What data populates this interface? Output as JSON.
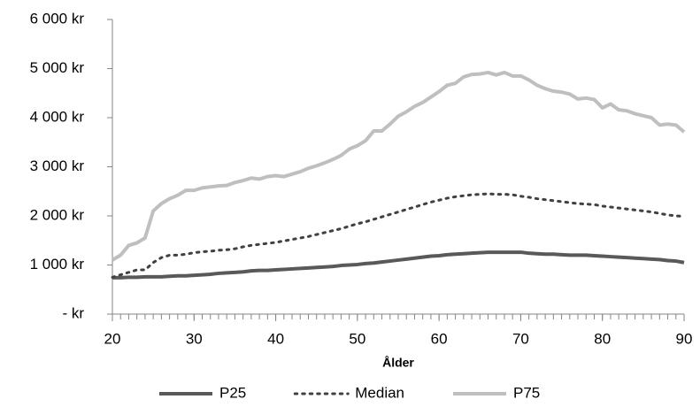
{
  "chart_data": {
    "type": "line",
    "x_label": "Ålder",
    "x": [
      20,
      21,
      22,
      23,
      24,
      25,
      26,
      27,
      28,
      29,
      30,
      31,
      32,
      33,
      34,
      35,
      36,
      37,
      38,
      39,
      40,
      41,
      42,
      43,
      44,
      45,
      46,
      47,
      48,
      49,
      50,
      51,
      52,
      53,
      54,
      55,
      56,
      57,
      58,
      59,
      60,
      61,
      62,
      63,
      64,
      65,
      66,
      67,
      68,
      69,
      70,
      71,
      72,
      73,
      74,
      75,
      76,
      77,
      78,
      79,
      80,
      81,
      82,
      83,
      84,
      85,
      86,
      87,
      88,
      89,
      90
    ],
    "xlim": [
      20,
      90
    ],
    "xticks": [
      20,
      30,
      40,
      50,
      60,
      70,
      80,
      90
    ],
    "ylim": [
      0,
      6000
    ],
    "yticks": [
      {
        "value": 0,
        "label": "-   kr"
      },
      {
        "value": 1000,
        "label": "1 000 kr"
      },
      {
        "value": 2000,
        "label": "2 000 kr"
      },
      {
        "value": 3000,
        "label": "3 000 kr"
      },
      {
        "value": 4000,
        "label": "4 000 kr"
      },
      {
        "value": 5000,
        "label": "5 000 kr"
      },
      {
        "value": 6000,
        "label": "6 000 kr"
      }
    ],
    "grid": false,
    "legend": "bottom",
    "series": [
      {
        "name": "P25",
        "color": "#595959",
        "style": "solid",
        "values": [
          740,
          740,
          750,
          750,
          760,
          760,
          760,
          770,
          780,
          780,
          790,
          800,
          810,
          830,
          840,
          850,
          860,
          880,
          890,
          890,
          900,
          910,
          920,
          930,
          940,
          950,
          960,
          970,
          990,
          1000,
          1010,
          1030,
          1040,
          1060,
          1080,
          1100,
          1120,
          1140,
          1160,
          1180,
          1190,
          1210,
          1220,
          1230,
          1240,
          1250,
          1260,
          1260,
          1260,
          1260,
          1260,
          1240,
          1230,
          1220,
          1220,
          1210,
          1200,
          1200,
          1200,
          1190,
          1180,
          1170,
          1160,
          1150,
          1140,
          1130,
          1120,
          1110,
          1090,
          1080,
          1050
        ]
      },
      {
        "name": "Median",
        "color": "#404040",
        "style": "dotted",
        "values": [
          750,
          800,
          850,
          900,
          900,
          1050,
          1150,
          1200,
          1200,
          1220,
          1250,
          1270,
          1280,
          1300,
          1310,
          1330,
          1370,
          1400,
          1420,
          1440,
          1460,
          1490,
          1520,
          1550,
          1580,
          1620,
          1660,
          1700,
          1740,
          1790,
          1840,
          1880,
          1930,
          1980,
          2030,
          2080,
          2130,
          2180,
          2230,
          2280,
          2320,
          2360,
          2390,
          2410,
          2430,
          2440,
          2450,
          2440,
          2440,
          2430,
          2400,
          2380,
          2350,
          2330,
          2310,
          2290,
          2270,
          2250,
          2240,
          2230,
          2200,
          2180,
          2160,
          2140,
          2120,
          2100,
          2080,
          2050,
          2020,
          2000,
          1990
        ]
      },
      {
        "name": "P75",
        "color": "#bfbfbf",
        "style": "solid",
        "values": [
          1100,
          1200,
          1400,
          1450,
          1550,
          2100,
          2250,
          2350,
          2420,
          2520,
          2520,
          2570,
          2590,
          2610,
          2620,
          2680,
          2720,
          2770,
          2750,
          2800,
          2820,
          2800,
          2850,
          2900,
          2970,
          3020,
          3080,
          3150,
          3230,
          3360,
          3430,
          3530,
          3730,
          3730,
          3870,
          4030,
          4120,
          4230,
          4310,
          4420,
          4530,
          4660,
          4700,
          4830,
          4880,
          4890,
          4920,
          4870,
          4920,
          4850,
          4850,
          4770,
          4660,
          4590,
          4540,
          4520,
          4480,
          4380,
          4400,
          4370,
          4200,
          4280,
          4160,
          4140,
          4080,
          4040,
          4000,
          3850,
          3870,
          3850,
          3710
        ]
      }
    ]
  }
}
